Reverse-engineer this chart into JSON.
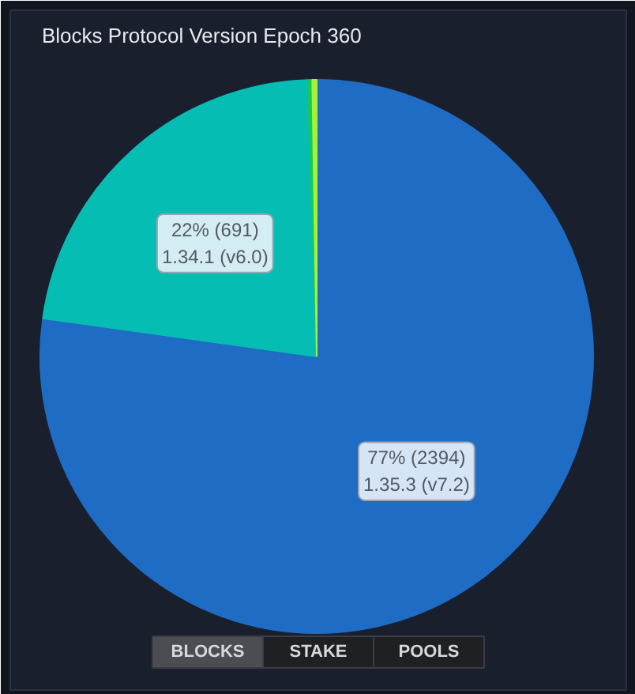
{
  "chart_data": {
    "type": "pie",
    "title": "Blocks Protocol Version Epoch 360",
    "categories": [
      "1.35.3 (v7.2)",
      "1.34.1 (v6.0)",
      null,
      null
    ],
    "values": [
      2394,
      691,
      8,
      8
    ],
    "colors": [
      "#1f6cc4",
      "#06bdb3",
      "#16c95c",
      "#a8ef3a"
    ],
    "value_labels": [
      "77% (2394)",
      "22% (691)",
      null,
      null
    ],
    "annotations": [
      "BLOCKS",
      "STAKE",
      "POOLS"
    ]
  }
}
